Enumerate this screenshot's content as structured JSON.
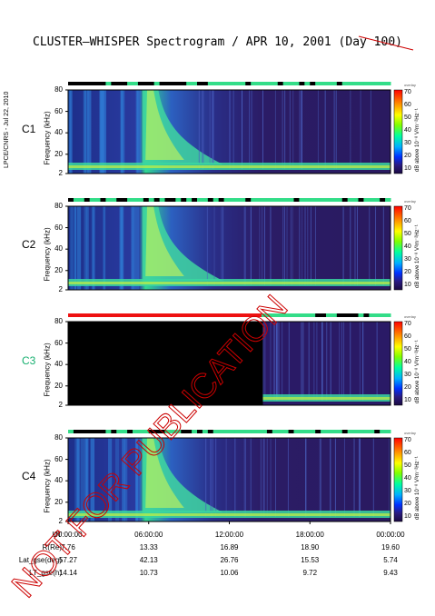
{
  "title": "CLUSTER–WHISPER Spectrogram / APR 10, 2001 (Day 100)",
  "side_label": "LPCE/CNRS - Jul 22, 2010",
  "watermark_text": "NOT FOR PUBLICATION",
  "y_axis_label": "Frequency (kHz)",
  "y_ticks": [
    "80",
    "60",
    "40",
    "20",
    "2"
  ],
  "colorbar": {
    "label": "dB above 10⁻⁸ V²m⁻²Hz⁻¹",
    "tag": "overlay",
    "ticks": [
      "70",
      "60",
      "50",
      "40",
      "30",
      "20",
      "10"
    ],
    "colors": [
      "#ff0000",
      "#ff7f00",
      "#ffff00",
      "#7fff00",
      "#00ff7f",
      "#00c0ff",
      "#0040ff",
      "#2a1a80",
      "#1a0a40"
    ]
  },
  "x_ticks": [
    "00:00:00",
    "06:00:00",
    "12:00:00",
    "18:00:00",
    "00:00:00"
  ],
  "ephemeris": {
    "labels": [
      "UT",
      "R(Re)",
      "Lat_gse(deg)",
      "LT_gse(h)"
    ],
    "rows": [
      [
        "7.76",
        "13.33",
        "16.89",
        "18.90",
        "19.60"
      ],
      [
        "57.27",
        "42.13",
        "26.76",
        "15.53",
        "5.74"
      ],
      [
        "14.14",
        "10.73",
        "10.06",
        "9.72",
        "9.43"
      ]
    ]
  },
  "chart_data": {
    "type": "heatmap",
    "title": "CLUSTER–WHISPER Spectrogram / APR 10, 2001 (Day 100)",
    "xlabel": "UT",
    "ylabel": "Frequency (kHz)",
    "ylim": [
      2,
      80
    ],
    "colorbar_range": [
      10,
      70
    ],
    "panels": [
      {
        "name": "C1",
        "name_color": "#000000",
        "data_start": "00:00:00",
        "mode_bar": "black/green"
      },
      {
        "name": "C2",
        "name_color": "#000000",
        "data_start": "00:00:00",
        "mode_bar": "black/green"
      },
      {
        "name": "C3",
        "name_color": "#18b070",
        "data_start": "14:30:00",
        "mode_bar": "red/green"
      },
      {
        "name": "C4",
        "name_color": "#000000",
        "data_start": "00:00:00",
        "mode_bar": "black/green"
      }
    ]
  }
}
